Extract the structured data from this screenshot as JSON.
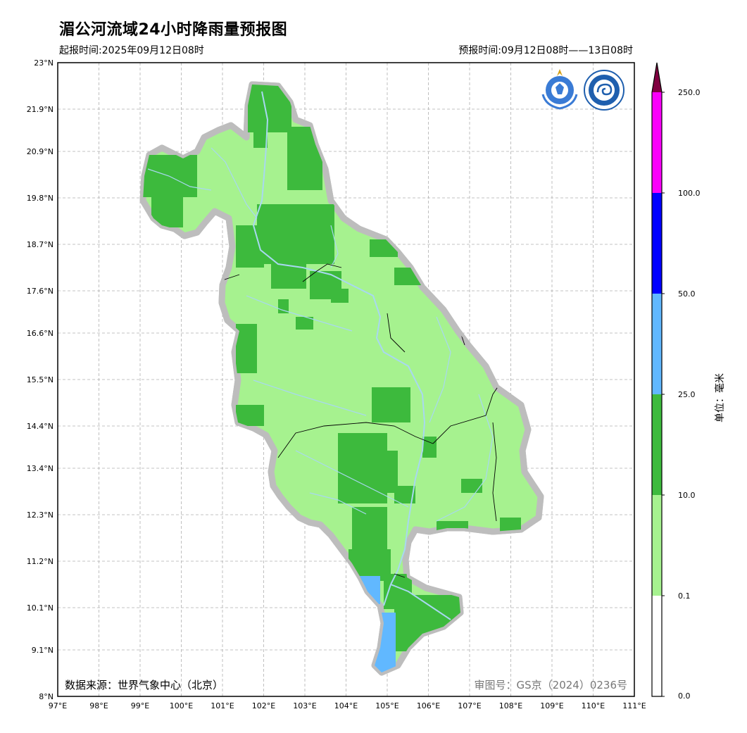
{
  "title": "湄公河流域24小时降雨量预报图",
  "issue_time": "起报时间:2025年09月12日08时",
  "forecast_time": "预报时间:09月12日08时——13日08时",
  "data_source": "数据来源：世界气象中心（北京）",
  "review_number": "审图号：GS京（2024）0236号",
  "unit_label": "单位：毫米",
  "lat_ticks": [
    "23°N",
    "21.9°N",
    "20.9°N",
    "19.8°N",
    "18.7°N",
    "17.6°N",
    "16.6°N",
    "15.5°N",
    "14.4°N",
    "13.4°N",
    "12.3°N",
    "11.2°N",
    "10.1°N",
    "9.1°N",
    "8°N"
  ],
  "lon_ticks": [
    "97°E",
    "98°E",
    "99°E",
    "100°E",
    "101°E",
    "102°E",
    "103°E",
    "104°E",
    "105°E",
    "106°E",
    "107°E",
    "108°E",
    "109°E",
    "110°E",
    "111°E"
  ],
  "colorbar": {
    "levels": [
      "0.0",
      "0.1",
      "10.0",
      "25.0",
      "50.0",
      "100.0",
      "250.0"
    ],
    "colors": [
      "#ffffff",
      "#a6f28f",
      "#3dba3d",
      "#61b8ff",
      "#0000ff",
      "#fa00fa",
      "#800040"
    ]
  },
  "colors": {
    "light_rain": "#a6f28f",
    "moderate_rain": "#3dba3d",
    "heavy_rain": "#61b8ff",
    "basin_halo": "#bdbdbd",
    "river": "#a8d8f0",
    "grid": "#b0b0b0"
  },
  "icons": [
    "wmo-logo-icon",
    "cma-logo-icon"
  ]
}
